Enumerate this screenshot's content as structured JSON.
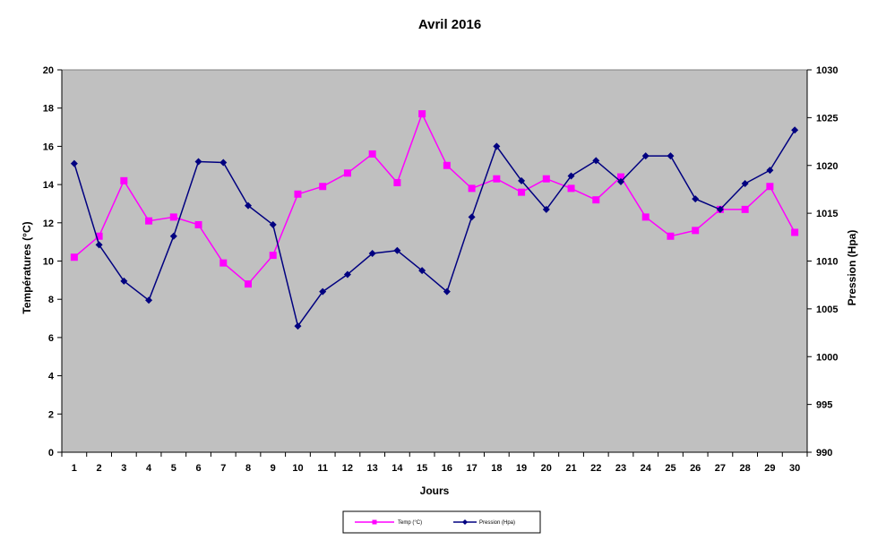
{
  "chart_data": {
    "type": "line",
    "title": "Avril 2016",
    "xlabel": "Jours",
    "ylabel_left": "Températures  (°C)",
    "ylabel_right": "Pression  (Hpa)",
    "categories": [
      "1",
      "2",
      "3",
      "4",
      "5",
      "6",
      "7",
      "8",
      "9",
      "10",
      "11",
      "12",
      "13",
      "14",
      "15",
      "16",
      "17",
      "18",
      "19",
      "20",
      "21",
      "22",
      "23",
      "24",
      "25",
      "26",
      "27",
      "28",
      "29",
      "30"
    ],
    "y_left": {
      "min": 0,
      "max": 20,
      "step": 2,
      "ticks": [
        "0",
        "2",
        "4",
        "6",
        "8",
        "10",
        "12",
        "14",
        "16",
        "18",
        "20"
      ]
    },
    "y_right": {
      "min": 990,
      "max": 1030,
      "step": 5,
      "ticks": [
        "990",
        "995",
        "1000",
        "1005",
        "1010",
        "1015",
        "1020",
        "1025",
        "1030"
      ]
    },
    "series": [
      {
        "name": "Temp (°C)",
        "axis": "left",
        "color": "#FF00FF",
        "marker": "square",
        "values": [
          10.2,
          11.3,
          14.2,
          12.1,
          12.3,
          11.9,
          9.9,
          8.8,
          10.3,
          13.5,
          13.9,
          14.6,
          15.6,
          14.1,
          17.7,
          15.0,
          13.8,
          14.3,
          13.6,
          14.3,
          13.8,
          13.2,
          14.4,
          12.3,
          11.3,
          11.6,
          12.7,
          12.7,
          13.9,
          11.5
        ]
      },
      {
        "name": "Pression (Hpa)",
        "axis": "right",
        "color": "#000080",
        "marker": "diamond",
        "values": [
          1020.2,
          1011.7,
          1007.9,
          1005.9,
          1012.6,
          1020.4,
          1020.3,
          1015.8,
          1013.8,
          1003.2,
          1006.8,
          1008.6,
          1010.8,
          1011.1,
          1009.0,
          1006.8,
          1014.6,
          1022.0,
          1018.4,
          1015.4,
          1018.9,
          1020.5,
          1018.3,
          1021.0,
          1021.0,
          1016.5,
          1015.4,
          1018.1,
          1019.5,
          1023.7
        ]
      }
    ],
    "plot_background": "#C0C0C0",
    "grid": false,
    "legend_position": "bottom"
  }
}
